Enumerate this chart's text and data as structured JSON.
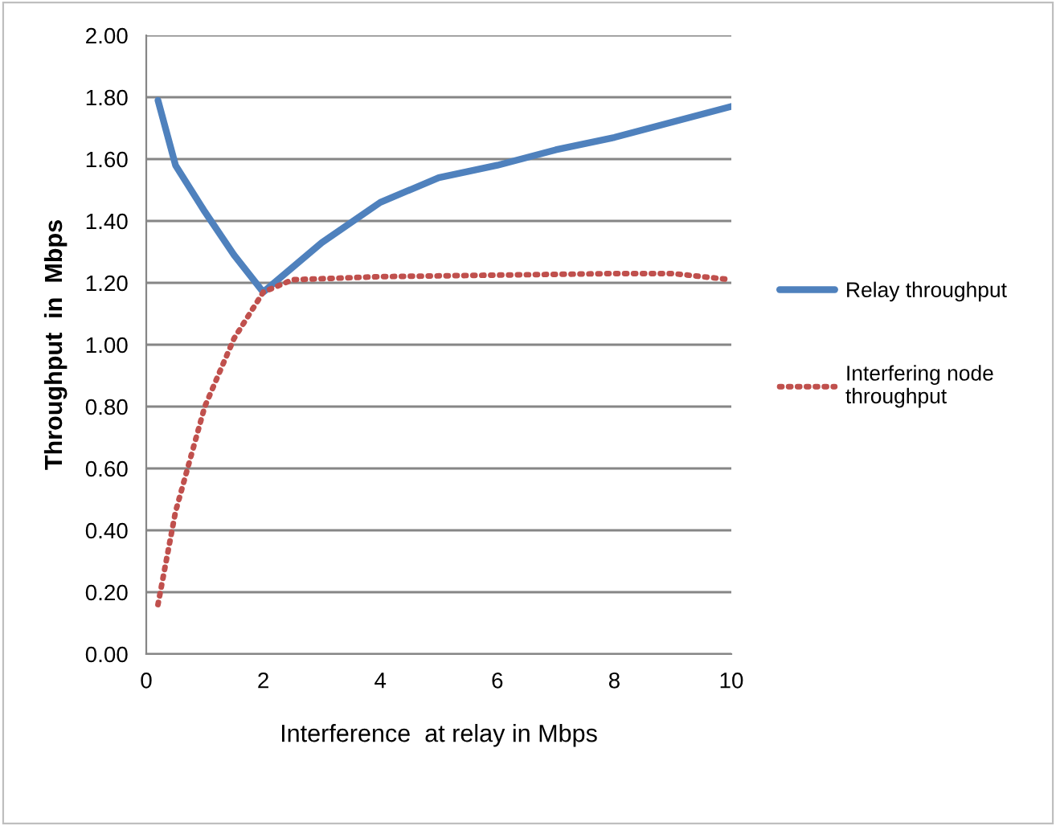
{
  "chart_data": {
    "type": "line",
    "xlabel": "Interference  at relay in Mbps",
    "ylabel": "Throughput  in  Mbps",
    "xlim": [
      0,
      10
    ],
    "xticks": [
      0,
      2,
      4,
      6,
      8,
      10
    ],
    "ylim": [
      0,
      2
    ],
    "yticks": [
      {
        "value": 0,
        "label": "0.00"
      },
      {
        "value": 0.2,
        "label": "0.20"
      },
      {
        "value": 0.4,
        "label": "0.40"
      },
      {
        "value": 0.6,
        "label": "0.60"
      },
      {
        "value": 0.8,
        "label": "0.80"
      },
      {
        "value": 1.0,
        "label": "1.00"
      },
      {
        "value": 1.2,
        "label": "1.20"
      },
      {
        "value": 1.4,
        "label": "1.40"
      },
      {
        "value": 1.6,
        "label": "1.60"
      },
      {
        "value": 1.8,
        "label": "1.80"
      },
      {
        "value": 2.0,
        "label": "2.00"
      }
    ],
    "grid": "y",
    "legend": "right",
    "marker": "none",
    "series": [
      {
        "name": "Relay throughput",
        "color": "#4f81bd",
        "line_style": "solid",
        "x": [
          0.2,
          0.5,
          1,
          1.5,
          2,
          3,
          4,
          5,
          6,
          7,
          8,
          9,
          10
        ],
        "values": [
          1.79,
          1.58,
          1.43,
          1.29,
          1.17,
          1.33,
          1.46,
          1.54,
          1.58,
          1.63,
          1.67,
          1.72,
          1.77
        ]
      },
      {
        "name": "Interfering node\nthroughput",
        "color": "#c0504d",
        "line_style": "dotted",
        "x": [
          0.2,
          0.5,
          1,
          1.5,
          2,
          2.5,
          4,
          6,
          8,
          9,
          10
        ],
        "values": [
          0.16,
          0.46,
          0.8,
          1.02,
          1.17,
          1.21,
          1.22,
          1.225,
          1.23,
          1.23,
          1.21
        ]
      }
    ]
  }
}
